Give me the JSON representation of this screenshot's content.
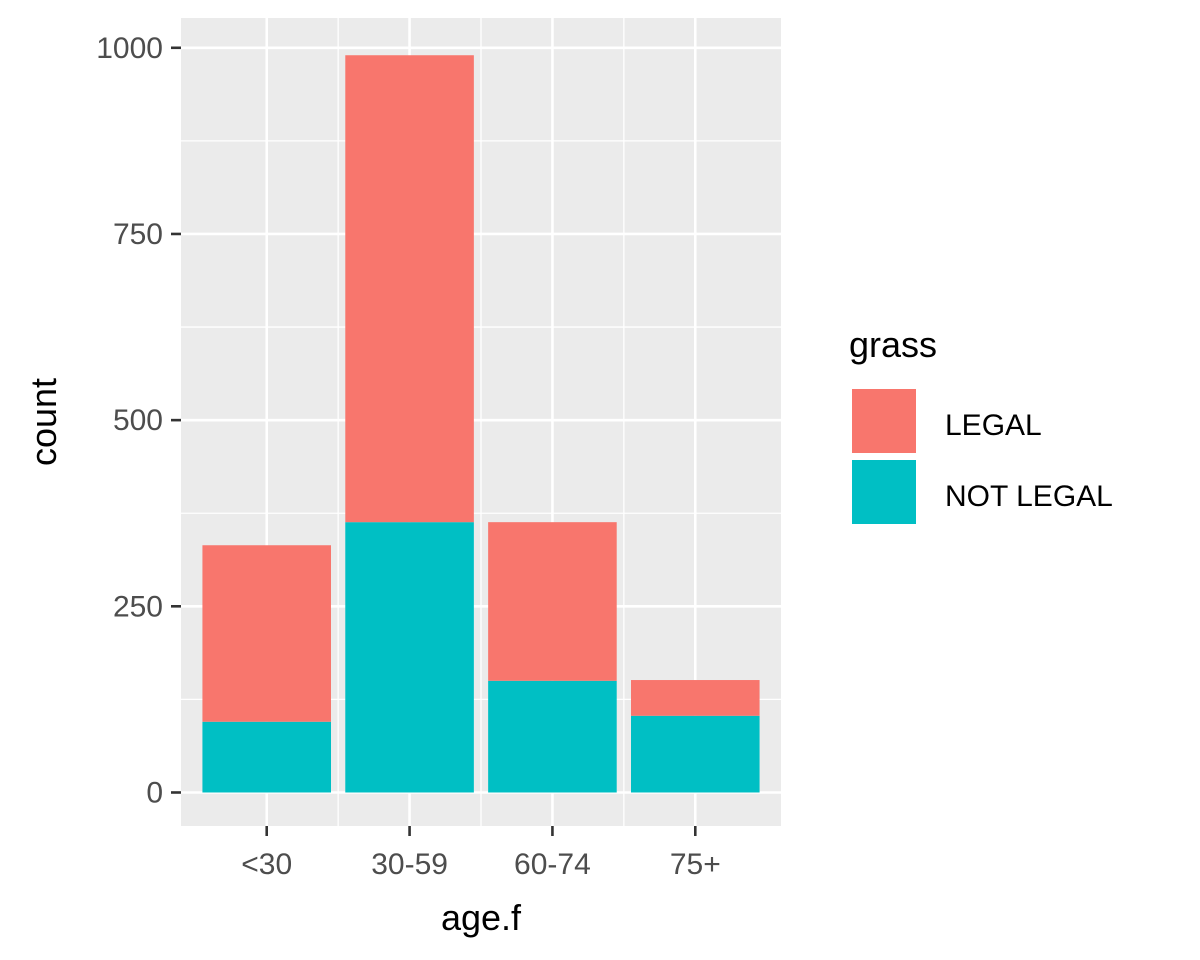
{
  "chart_data": {
    "type": "bar",
    "stacked": true,
    "categories": [
      "<30",
      "30-59",
      "60-74",
      "75+"
    ],
    "series": [
      {
        "name": "NOT LEGAL",
        "color": "#00BFC4",
        "values": [
          95,
          363,
          150,
          103
        ]
      },
      {
        "name": "LEGAL",
        "color": "#F8766D",
        "values": [
          237,
          627,
          213,
          48
        ]
      }
    ],
    "xlabel": "age.f",
    "ylabel": "count",
    "yticks": [
      0,
      250,
      500,
      750,
      1000
    ],
    "ylim": [
      -45,
      1040
    ],
    "grid": true,
    "legend": {
      "title": "grass",
      "position": "right",
      "entries": [
        "LEGAL",
        "NOT LEGAL"
      ]
    },
    "panel_background": "#EBEBEB",
    "grid_color": "#FFFFFF"
  }
}
